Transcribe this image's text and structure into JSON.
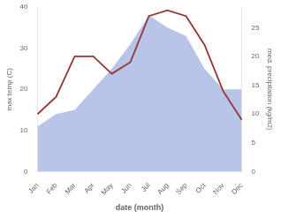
{
  "chart_data": {
    "type": "line",
    "xlabel": "date (month)",
    "ylabel": "max temp (C)",
    "y2label": "med. precipitation (kg/m2)",
    "categories": [
      "Jan",
      "Feb",
      "Mar",
      "Apr",
      "May",
      "Jun",
      "Jul",
      "Aug",
      "Sep",
      "Oct",
      "Nov",
      "Dec"
    ],
    "series": [
      {
        "type": "area",
        "color": "#b8c4e8",
        "values": [
          11,
          14,
          15,
          20,
          25,
          31,
          38,
          35,
          33,
          25,
          20,
          20
        ]
      },
      {
        "type": "line",
        "color": "#993333",
        "axis": "y2",
        "values": [
          10,
          13,
          20,
          20,
          17,
          19,
          27,
          28,
          27,
          22,
          14,
          9
        ]
      }
    ],
    "ylim": [
      0,
      40
    ],
    "yticks": [
      0,
      10,
      20,
      30,
      40
    ],
    "y2lim": [
      0,
      28.57
    ],
    "y2ticks": [
      0,
      5,
      10,
      15,
      20,
      25
    ],
    "grid": false
  }
}
